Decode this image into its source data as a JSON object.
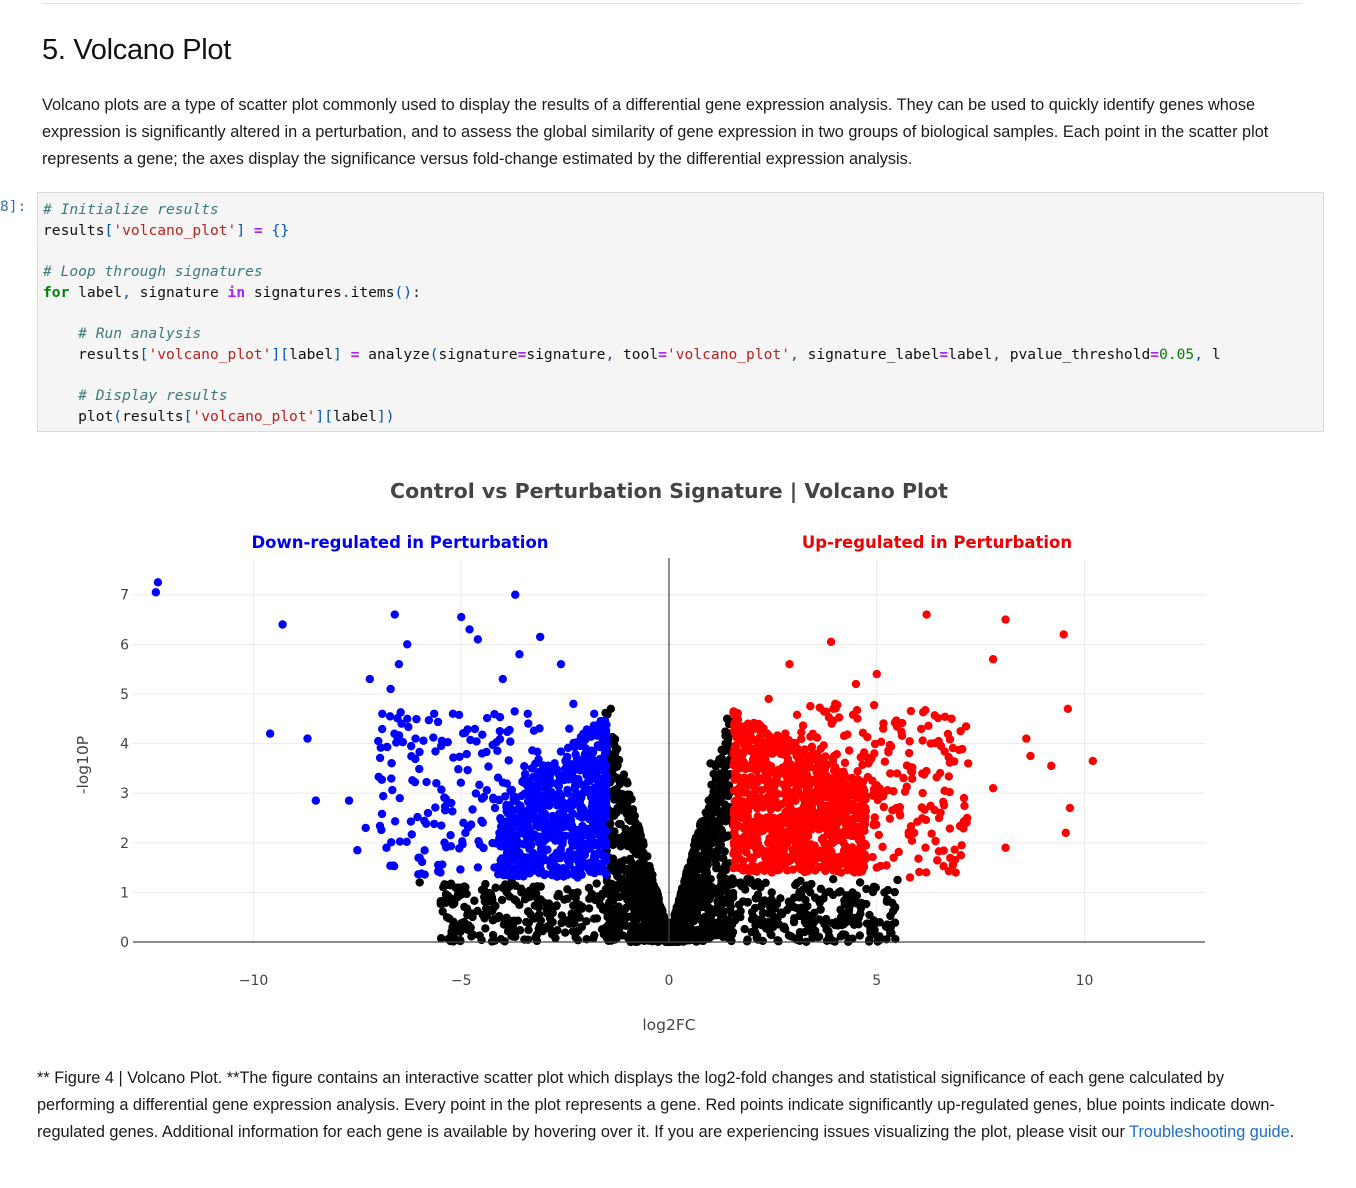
{
  "section": {
    "title": "5. Volcano Plot",
    "intro": "Volcano plots are a type of scatter plot commonly used to display the results of a differential gene expression analysis. They can be used to quickly identify genes whose expression is significantly altered in a perturbation, and to assess the global similarity of gene expression in two groups of biological samples. Each point in the scatter plot represents a gene; the axes display the significance versus fold-change estimated by the differential expression analysis."
  },
  "code_cell": {
    "prompt": "8]:",
    "lines": [
      "# Initialize results",
      "results['volcano_plot'] = {}",
      "",
      "# Loop through signatures",
      "for label, signature in signatures.items():",
      "",
      "    # Run analysis",
      "    results['volcano_plot'][label] = analyze(signature=signature, tool='volcano_plot', signature_label=label, pvalue_threshold=0.05, l",
      "",
      "    # Display results",
      "    plot(results['volcano_plot'][label])"
    ]
  },
  "chart_data": {
    "type": "scatter",
    "title": "Control vs Perturbation Signature | Volcano Plot",
    "xlabel": "log2FC",
    "ylabel": "-log10P",
    "xlim": [
      -12.9,
      12.9
    ],
    "ylim": [
      0,
      7.7
    ],
    "xticks": [
      "−10",
      "−5",
      "0",
      "5",
      "10"
    ],
    "xtick_values": [
      -10,
      -5,
      0,
      5,
      10
    ],
    "yticks": [
      "0",
      "1",
      "2",
      "3",
      "4",
      "5",
      "6",
      "7"
    ],
    "ytick_values": [
      0,
      1,
      2,
      3,
      4,
      5,
      6,
      7
    ],
    "grid": true,
    "annotations": [
      {
        "text": "Down-regulated in Perturbation",
        "color": "#0000ee"
      },
      {
        "text": "Up-regulated in Perturbation",
        "color": "#ee0000"
      }
    ],
    "series": [
      {
        "color": "#0000ff",
        "points": [
          [
            -12.3,
            7.25
          ],
          [
            -12.35,
            7.05
          ],
          [
            -9.3,
            6.4
          ],
          [
            -9.6,
            4.2
          ],
          [
            -8.7,
            4.1
          ],
          [
            -8.5,
            2.85
          ],
          [
            -7.7,
            2.85
          ],
          [
            -7.5,
            1.85
          ],
          [
            -7.2,
            5.3
          ],
          [
            -6.6,
            6.6
          ],
          [
            -6.3,
            6.0
          ],
          [
            -6.7,
            5.1
          ],
          [
            -6.5,
            5.6
          ],
          [
            -6.9,
            4.6
          ],
          [
            -3.7,
            7.0
          ],
          [
            -5.0,
            6.55
          ],
          [
            -4.8,
            6.3
          ],
          [
            -4.6,
            6.1
          ],
          [
            -5.2,
            4.6
          ],
          [
            -3.1,
            6.15
          ],
          [
            -3.6,
            5.8
          ],
          [
            -4.0,
            5.3
          ],
          [
            -2.6,
            5.6
          ],
          [
            -7.3,
            2.3
          ],
          [
            -6.1,
            4.1
          ],
          [
            -5.6,
            3.2
          ],
          [
            -4.5,
            3.8
          ],
          [
            -3.9,
            2.7
          ],
          [
            -2.4,
            4.3
          ],
          [
            -2.0,
            3.9
          ],
          [
            -1.7,
            3.3
          ],
          [
            -1.9,
            2.5
          ],
          [
            -2.8,
            2.1
          ],
          [
            -3.3,
            3.5
          ],
          [
            -6.8,
            1.9
          ],
          [
            -6.0,
            1.7
          ],
          [
            -5.5,
            1.4
          ],
          [
            -4.2,
            1.5
          ],
          [
            -3.0,
            1.35
          ],
          [
            -2.2,
            1.3
          ],
          [
            -1.6,
            1.5
          ],
          [
            -1.8,
            4.6
          ],
          [
            -2.3,
            4.8
          ],
          [
            -5.8,
            2.6
          ],
          [
            -4.9,
            2.2
          ],
          [
            -3.4,
            4.6
          ]
        ]
      },
      {
        "color": "#ff0000",
        "points": [
          [
            6.2,
            6.6
          ],
          [
            8.1,
            6.5
          ],
          [
            9.5,
            6.2
          ],
          [
            9.6,
            4.7
          ],
          [
            10.2,
            3.65
          ],
          [
            9.2,
            3.55
          ],
          [
            9.65,
            2.7
          ],
          [
            9.55,
            2.2
          ],
          [
            8.1,
            1.9
          ],
          [
            7.8,
            3.1
          ],
          [
            8.7,
            3.75
          ],
          [
            8.6,
            4.1
          ],
          [
            7.8,
            5.7
          ],
          [
            3.9,
            6.05
          ],
          [
            5.0,
            5.4
          ],
          [
            4.5,
            5.2
          ],
          [
            2.9,
            5.6
          ],
          [
            2.4,
            4.9
          ],
          [
            6.8,
            4.5
          ],
          [
            7.2,
            3.6
          ],
          [
            6.5,
            2.5
          ],
          [
            5.8,
            1.3
          ],
          [
            5.0,
            1.5
          ],
          [
            4.2,
            2.0
          ],
          [
            3.1,
            3.8
          ],
          [
            1.9,
            4.4
          ],
          [
            1.6,
            2.0
          ],
          [
            2.6,
            1.5
          ],
          [
            3.6,
            3.2
          ],
          [
            5.5,
            4.4
          ],
          [
            4.8,
            3.6
          ],
          [
            7.1,
            2.9
          ],
          [
            6.9,
            1.4
          ],
          [
            3.3,
            1.7
          ],
          [
            2.2,
            2.9
          ],
          [
            1.7,
            3.5
          ],
          [
            4.0,
            4.8
          ],
          [
            5.9,
            2.2
          ],
          [
            6.3,
            4.0
          ],
          [
            2.8,
            4.2
          ]
        ]
      },
      {
        "color": "#000000",
        "points": [
          [
            -2.2,
            1.0
          ],
          [
            -3.6,
            0.75
          ],
          [
            -5.3,
            1.15
          ],
          [
            -6.0,
            1.2
          ],
          [
            -4.5,
            1.05
          ],
          [
            -2.8,
            0.4
          ],
          [
            -1.3,
            0.6
          ],
          [
            -0.6,
            0.2
          ],
          [
            0.0,
            0.0
          ],
          [
            0.5,
            0.3
          ],
          [
            1.2,
            0.8
          ],
          [
            2.0,
            0.6
          ],
          [
            3.4,
            1.0
          ],
          [
            4.6,
            1.2
          ],
          [
            5.5,
            1.25
          ],
          [
            -1.4,
            4.7
          ],
          [
            1.4,
            4.5
          ],
          [
            1.0,
            3.6
          ],
          [
            -1.0,
            3.2
          ],
          [
            0.7,
            2.0
          ],
          [
            -0.7,
            2.2
          ]
        ]
      }
    ]
  },
  "caption": {
    "text": "** Figure 4 | Volcano Plot. **The figure contains an interactive scatter plot which displays the log2-fold changes and statistical significance of each gene calculated by performing a differential gene expression analysis. Every point in the plot represents a gene. Red points indicate significantly up-regulated genes, blue points indicate down-regulated genes. Additional information for each gene is available by hovering over it. If you are experiencing issues visualizing the plot, please visit our",
    "link": "Troubleshooting guide",
    "end": "."
  }
}
